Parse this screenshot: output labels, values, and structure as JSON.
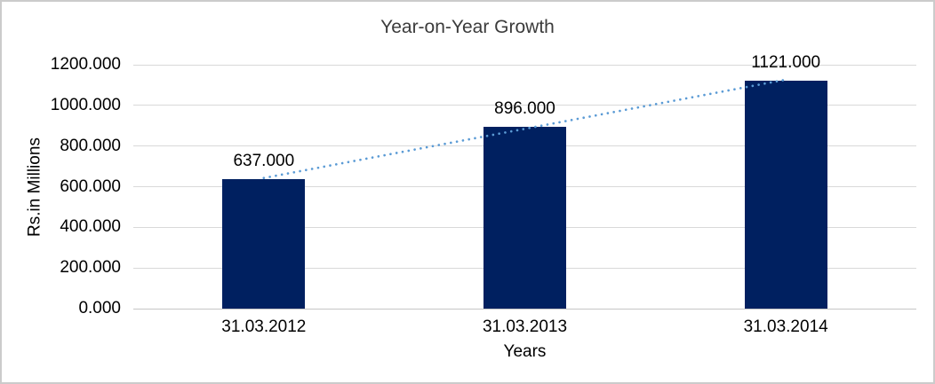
{
  "chart_data": {
    "type": "bar",
    "title": "Year-on-Year Growth",
    "categories": [
      "31.03.2012",
      "31.03.2013",
      "31.03.2014"
    ],
    "values": [
      637,
      896,
      1121
    ],
    "data_labels": [
      "637.000",
      "896.000",
      "1121.000"
    ],
    "xlabel": "Years",
    "ylabel": "Rs.in Millions",
    "ylim": [
      0,
      1200
    ],
    "ytick_step": 200,
    "ytick_labels": [
      "0.000",
      "200.000",
      "400.000",
      "600.000",
      "800.000",
      "1000.000",
      "1200.000"
    ],
    "grid": true,
    "legend_position": "none",
    "trendline": {
      "type": "linear",
      "style": "dotted"
    },
    "colors": {
      "bar": "#002060",
      "gridline": "#D9D9D9",
      "axis_line": "#C6C6C6",
      "trendline": "#5B9BD5",
      "title_text": "#3B3B3B",
      "label_text": "#000000",
      "frame_border": "#CBCBCB",
      "background": "#FFFFFF"
    }
  }
}
